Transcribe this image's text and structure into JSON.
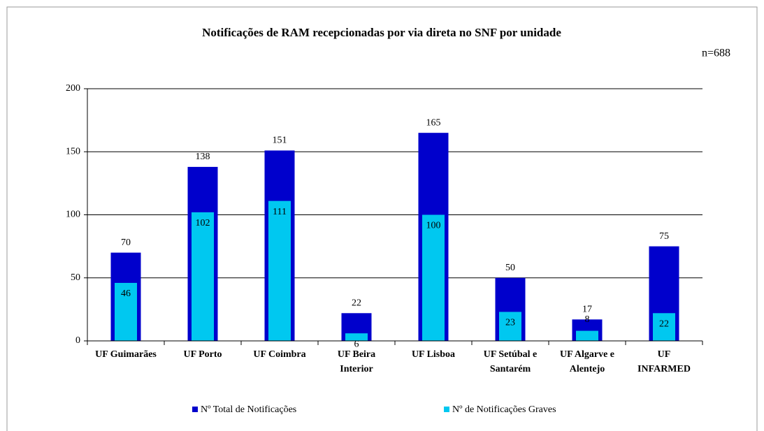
{
  "chart_data": {
    "type": "bar",
    "title": "Notificações de RAM recepcionadas por via direta no SNF por unidade",
    "annotation": "n=688",
    "categories": [
      [
        "UF Guimarães"
      ],
      [
        "UF Porto"
      ],
      [
        "UF Coimbra"
      ],
      [
        "UF Beira",
        "Interior"
      ],
      [
        "UF Lisboa"
      ],
      [
        "UF Setúbal e",
        "Santarém"
      ],
      [
        "UF Algarve e",
        "Alentejo"
      ],
      [
        "UF",
        "INFARMED"
      ]
    ],
    "series": [
      {
        "name": "Nº Total de Notificações",
        "color": "#0000cc",
        "values": [
          70,
          138,
          151,
          22,
          165,
          50,
          17,
          75
        ]
      },
      {
        "name": "Nº de Notificações Graves",
        "color": "#00c8f0",
        "values": [
          46,
          102,
          111,
          6,
          100,
          23,
          8,
          22
        ]
      }
    ],
    "ylim": [
      0,
      200
    ],
    "yticks": [
      0,
      50,
      100,
      150,
      200
    ],
    "grid": true,
    "legend": "bottom"
  }
}
